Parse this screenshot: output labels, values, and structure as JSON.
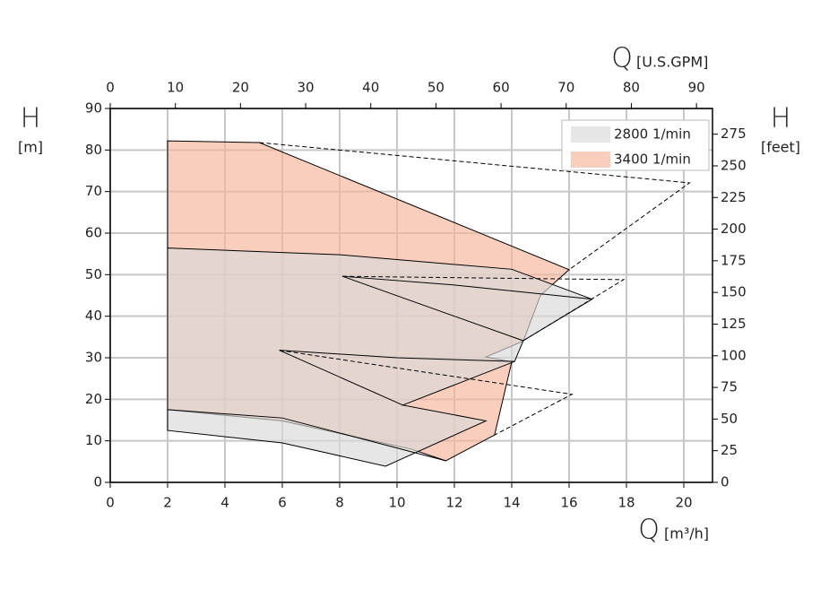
{
  "chart_data": {
    "type": "region",
    "xlabel": "Q",
    "xunit": "[m³/h]",
    "x2label": "Q",
    "x2unit": "[U.S.GPM]",
    "ylabel": "H",
    "yunit": "[m]",
    "y2label": "H",
    "y2unit": "[feet]",
    "xlim": [
      0,
      21
    ],
    "xticks": [
      0,
      2,
      4,
      6,
      8,
      10,
      12,
      14,
      16,
      18,
      20
    ],
    "x2lim": [
      0,
      92.46
    ],
    "x2ticks": [
      0,
      10,
      20,
      30,
      40,
      50,
      60,
      70,
      80,
      90
    ],
    "ylim": [
      0,
      90
    ],
    "yticks": [
      0,
      10,
      20,
      30,
      40,
      50,
      60,
      70,
      80,
      90
    ],
    "y2lim": [
      0,
      295.3
    ],
    "y2ticks": [
      0,
      25,
      50,
      75,
      100,
      125,
      150,
      175,
      200,
      225,
      250,
      275
    ],
    "grid": true,
    "legend": "top-right",
    "series": [
      {
        "name": "3400 1/min",
        "color": "#f7b49a",
        "polygons": [
          {
            "x": [
              2,
              5.2,
              16,
              15,
              14.4,
              13.1,
              14,
              13.4,
              11.7,
              10.5,
              6,
              2
            ],
            "y": [
              82.2,
              81.8,
              51.2,
              45,
              34,
              30.2,
              29,
              11.4,
              5.2,
              8,
              14.8,
              17.5
            ]
          }
        ],
        "lines": []
      },
      {
        "name": "2800 1/min",
        "color": "#d9d9d9",
        "polygons": [
          {
            "x": [
              2,
              8,
              14,
              16.8,
              14.4,
              14.1,
              10.2,
              13.1,
              9.6,
              6,
              2
            ],
            "y": [
              56.4,
              54.8,
              51.3,
              44.1,
              34.1,
              29.1,
              18.6,
              14.8,
              3.9,
              9.5,
              12.5
            ]
          }
        ],
        "lines": [
          {
            "x": [
              8.1,
              14.4
            ],
            "y": [
              49.6,
              34.1
            ]
          },
          {
            "x": [
              8.1,
              12,
              16.8
            ],
            "y": [
              49.6,
              47.5,
              44.1
            ]
          },
          {
            "x": [
              5.9,
              10.2
            ],
            "y": [
              31.8,
              18.6
            ]
          },
          {
            "x": [
              5.9,
              10,
              14.1
            ],
            "y": [
              31.8,
              30,
              29.1
            ]
          },
          {
            "x": [
              2,
              6,
              11.7
            ],
            "y": [
              17.5,
              15.5,
              5.2
            ]
          }
        ]
      }
    ],
    "limit_lines": [
      {
        "x": [
          5.2,
          20.2,
          16
        ],
        "y": [
          81.8,
          72.1,
          51.2
        ]
      },
      {
        "x": [
          8.1,
          17.9,
          14.4
        ],
        "y": [
          49.6,
          48.8,
          34.1
        ]
      },
      {
        "x": [
          5.9,
          16.1,
          13.4
        ],
        "y": [
          31.8,
          21.2,
          11.4
        ]
      }
    ]
  }
}
